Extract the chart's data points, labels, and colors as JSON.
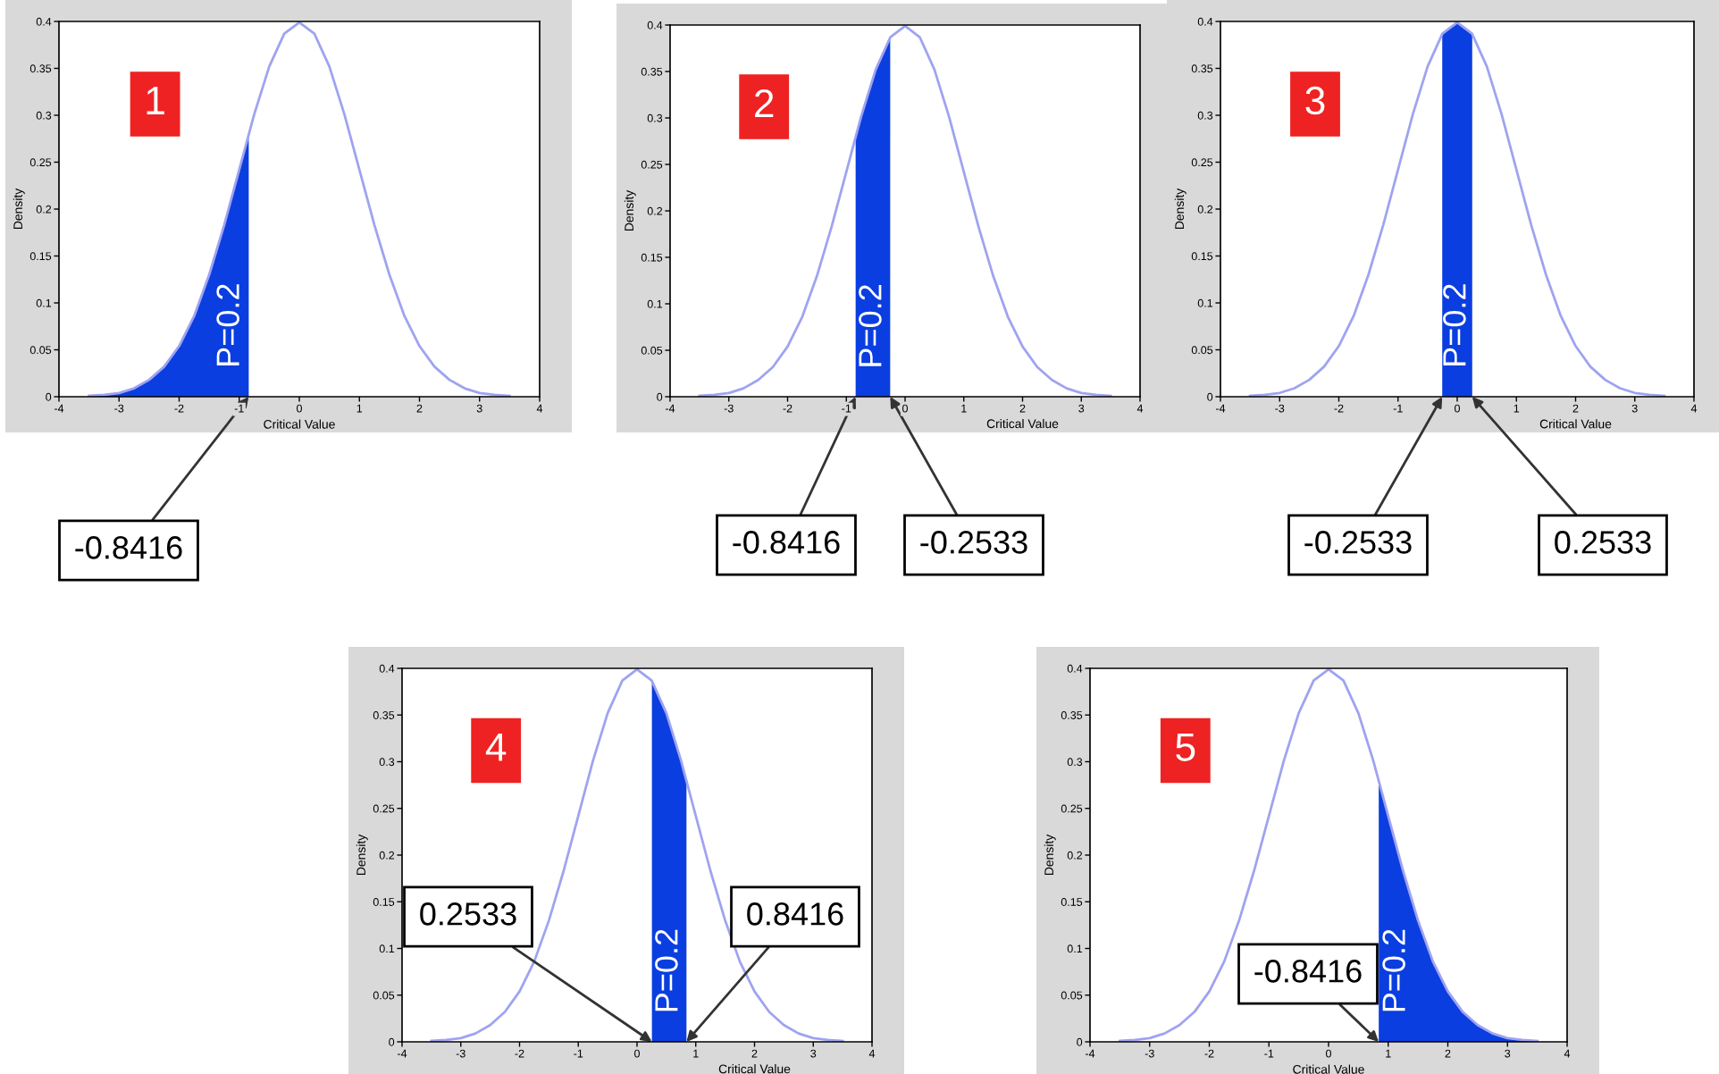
{
  "chart_data": [
    {
      "type": "line",
      "xlabel": "Critical Value",
      "ylabel": "Density",
      "xlim": [
        -4,
        4
      ],
      "ylim": [
        0,
        0.4
      ],
      "xticks": [
        -4,
        -3,
        -2,
        -1,
        0,
        1,
        2,
        3,
        4
      ],
      "yticks": [
        0,
        0.05,
        0.1,
        0.15,
        0.2,
        0.25,
        0.3,
        0.35,
        0.4
      ],
      "grid": false,
      "series": [
        {
          "color": "#9fa3f0",
          "x": [
            -3.5,
            -3.25,
            -3,
            -2.75,
            -2.5,
            -2.25,
            -2,
            -1.75,
            -1.5,
            -1.25,
            -1,
            -0.75,
            -0.5,
            -0.25,
            0,
            0.25,
            0.5,
            0.75,
            1,
            1.25,
            1.5,
            1.75,
            2,
            2.25,
            2.5,
            2.75,
            3,
            3.25,
            3.5
          ],
          "values": [
            0.001,
            0.002,
            0.004,
            0.009,
            0.018,
            0.032,
            0.054,
            0.086,
            0.13,
            0.183,
            0.242,
            0.301,
            0.352,
            0.387,
            0.399,
            0.387,
            0.352,
            0.301,
            0.242,
            0.183,
            0.13,
            0.086,
            0.054,
            0.032,
            0.018,
            0.009,
            0.004,
            0.002,
            0.001
          ]
        },
        {
          "type": "area",
          "color": "#0a3ee0",
          "x": [
            -3.5,
            -3.25,
            -3,
            -2.75,
            -2.5,
            -2.25,
            -2,
            -1.75,
            -1.5,
            -1.25,
            -1,
            -0.8416
          ],
          "values": [
            0.001,
            0.002,
            0.004,
            0.009,
            0.018,
            0.032,
            0.054,
            0.086,
            0.13,
            0.183,
            0.242,
            0.28
          ]
        }
      ],
      "annotations": [
        "1",
        "P=0.2",
        {
          "text": "-0.8416",
          "x": -0.8416,
          "y": 0
        }
      ]
    },
    {
      "type": "line",
      "xlabel": "Critical Value",
      "ylabel": "Density",
      "xlim": [
        -4,
        4
      ],
      "ylim": [
        0,
        0.4
      ],
      "xticks": [
        -4,
        -3,
        -2,
        -1,
        0,
        1,
        2,
        3,
        4
      ],
      "yticks": [
        0,
        0.05,
        0.1,
        0.15,
        0.2,
        0.25,
        0.3,
        0.35,
        0.4
      ],
      "grid": false,
      "series": [
        {
          "color": "#9fa3f0",
          "x": [
            -3.5,
            -3.25,
            -3,
            -2.75,
            -2.5,
            -2.25,
            -2,
            -1.75,
            -1.5,
            -1.25,
            -1,
            -0.75,
            -0.5,
            -0.25,
            0,
            0.25,
            0.5,
            0.75,
            1,
            1.25,
            1.5,
            1.75,
            2,
            2.25,
            2.5,
            2.75,
            3,
            3.25,
            3.5
          ],
          "values": [
            0.001,
            0.002,
            0.004,
            0.009,
            0.018,
            0.032,
            0.054,
            0.086,
            0.13,
            0.183,
            0.242,
            0.301,
            0.352,
            0.387,
            0.399,
            0.387,
            0.352,
            0.301,
            0.242,
            0.183,
            0.13,
            0.086,
            0.054,
            0.032,
            0.018,
            0.009,
            0.004,
            0.002,
            0.001
          ]
        },
        {
          "type": "area",
          "color": "#0a3ee0",
          "x": [
            -0.8416,
            -0.75,
            -0.5,
            -0.2533
          ],
          "values": [
            0.28,
            0.301,
            0.352,
            0.386
          ]
        }
      ],
      "annotations": [
        "2",
        "P=0.2",
        {
          "text": "-0.8416",
          "x": -0.8416,
          "y": 0
        },
        {
          "text": "-0.2533",
          "x": -0.2533,
          "y": 0
        }
      ]
    },
    {
      "type": "line",
      "xlabel": "Critical Value",
      "ylabel": "Density",
      "xlim": [
        -4,
        4
      ],
      "ylim": [
        0,
        0.4
      ],
      "xticks": [
        -4,
        -3,
        -2,
        -1,
        0,
        1,
        2,
        3,
        4
      ],
      "yticks": [
        0,
        0.05,
        0.1,
        0.15,
        0.2,
        0.25,
        0.3,
        0.35,
        0.4
      ],
      "grid": false,
      "series": [
        {
          "color": "#9fa3f0",
          "x": [
            -3.5,
            -3.25,
            -3,
            -2.75,
            -2.5,
            -2.25,
            -2,
            -1.75,
            -1.5,
            -1.25,
            -1,
            -0.75,
            -0.5,
            -0.25,
            0,
            0.25,
            0.5,
            0.75,
            1,
            1.25,
            1.5,
            1.75,
            2,
            2.25,
            2.5,
            2.75,
            3,
            3.25,
            3.5
          ],
          "values": [
            0.001,
            0.002,
            0.004,
            0.009,
            0.018,
            0.032,
            0.054,
            0.086,
            0.13,
            0.183,
            0.242,
            0.301,
            0.352,
            0.387,
            0.399,
            0.387,
            0.352,
            0.301,
            0.242,
            0.183,
            0.13,
            0.086,
            0.054,
            0.032,
            0.018,
            0.009,
            0.004,
            0.002,
            0.001
          ]
        },
        {
          "type": "area",
          "color": "#0a3ee0",
          "x": [
            -0.2533,
            0,
            0.2533
          ],
          "values": [
            0.386,
            0.399,
            0.386
          ]
        }
      ],
      "annotations": [
        "3",
        "P=0.2",
        {
          "text": "-0.2533",
          "x": -0.2533,
          "y": 0
        },
        {
          "text": "0.2533",
          "x": 0.2533,
          "y": 0
        }
      ]
    },
    {
      "type": "line",
      "xlabel": "Critical Value",
      "ylabel": "Density",
      "xlim": [
        -4,
        4
      ],
      "ylim": [
        0,
        0.4
      ],
      "xticks": [
        -4,
        -3,
        -2,
        -1,
        0,
        1,
        2,
        3,
        4
      ],
      "yticks": [
        0,
        0.05,
        0.1,
        0.15,
        0.2,
        0.25,
        0.3,
        0.35,
        0.4
      ],
      "grid": false,
      "series": [
        {
          "color": "#9fa3f0",
          "x": [
            -3.5,
            -3.25,
            -3,
            -2.75,
            -2.5,
            -2.25,
            -2,
            -1.75,
            -1.5,
            -1.25,
            -1,
            -0.75,
            -0.5,
            -0.25,
            0,
            0.25,
            0.5,
            0.75,
            1,
            1.25,
            1.5,
            1.75,
            2,
            2.25,
            2.5,
            2.75,
            3,
            3.25,
            3.5
          ],
          "values": [
            0.001,
            0.002,
            0.004,
            0.009,
            0.018,
            0.032,
            0.054,
            0.086,
            0.13,
            0.183,
            0.242,
            0.301,
            0.352,
            0.387,
            0.399,
            0.387,
            0.352,
            0.301,
            0.242,
            0.183,
            0.13,
            0.086,
            0.054,
            0.032,
            0.018,
            0.009,
            0.004,
            0.002,
            0.001
          ]
        },
        {
          "type": "area",
          "color": "#0a3ee0",
          "x": [
            0.2533,
            0.5,
            0.75,
            0.8416
          ],
          "values": [
            0.386,
            0.352,
            0.301,
            0.28
          ]
        }
      ],
      "annotations": [
        "4",
        "P=0.2",
        {
          "text": "0.2533",
          "x": 0.2533,
          "y": 0
        },
        {
          "text": "0.8416",
          "x": 0.8416,
          "y": 0
        }
      ]
    },
    {
      "type": "line",
      "xlabel": "Critical Value",
      "ylabel": "Density",
      "xlim": [
        -4,
        4
      ],
      "ylim": [
        0,
        0.4
      ],
      "xticks": [
        -4,
        -3,
        -2,
        -1,
        0,
        1,
        2,
        3,
        4
      ],
      "yticks": [
        0,
        0.05,
        0.1,
        0.15,
        0.2,
        0.25,
        0.3,
        0.35,
        0.4
      ],
      "grid": false,
      "series": [
        {
          "color": "#9fa3f0",
          "x": [
            -3.5,
            -3.25,
            -3,
            -2.75,
            -2.5,
            -2.25,
            -2,
            -1.75,
            -1.5,
            -1.25,
            -1,
            -0.75,
            -0.5,
            -0.25,
            0,
            0.25,
            0.5,
            0.75,
            1,
            1.25,
            1.5,
            1.75,
            2,
            2.25,
            2.5,
            2.75,
            3,
            3.25,
            3.5
          ],
          "values": [
            0.001,
            0.002,
            0.004,
            0.009,
            0.018,
            0.032,
            0.054,
            0.086,
            0.13,
            0.183,
            0.242,
            0.301,
            0.352,
            0.387,
            0.399,
            0.387,
            0.352,
            0.301,
            0.242,
            0.183,
            0.13,
            0.086,
            0.054,
            0.032,
            0.018,
            0.009,
            0.004,
            0.002,
            0.001
          ]
        },
        {
          "type": "area",
          "color": "#0a3ee0",
          "x": [
            0.8416,
            1,
            1.25,
            1.5,
            1.75,
            2,
            2.25,
            2.5,
            2.75,
            3,
            3.25,
            3.5
          ],
          "values": [
            0.28,
            0.242,
            0.183,
            0.13,
            0.086,
            0.054,
            0.032,
            0.018,
            0.009,
            0.004,
            0.002,
            0.001
          ]
        }
      ],
      "annotations": [
        "5",
        "P=0.2",
        {
          "text": "-0.8416",
          "x": 0.8416,
          "y": 0
        }
      ]
    }
  ]
}
